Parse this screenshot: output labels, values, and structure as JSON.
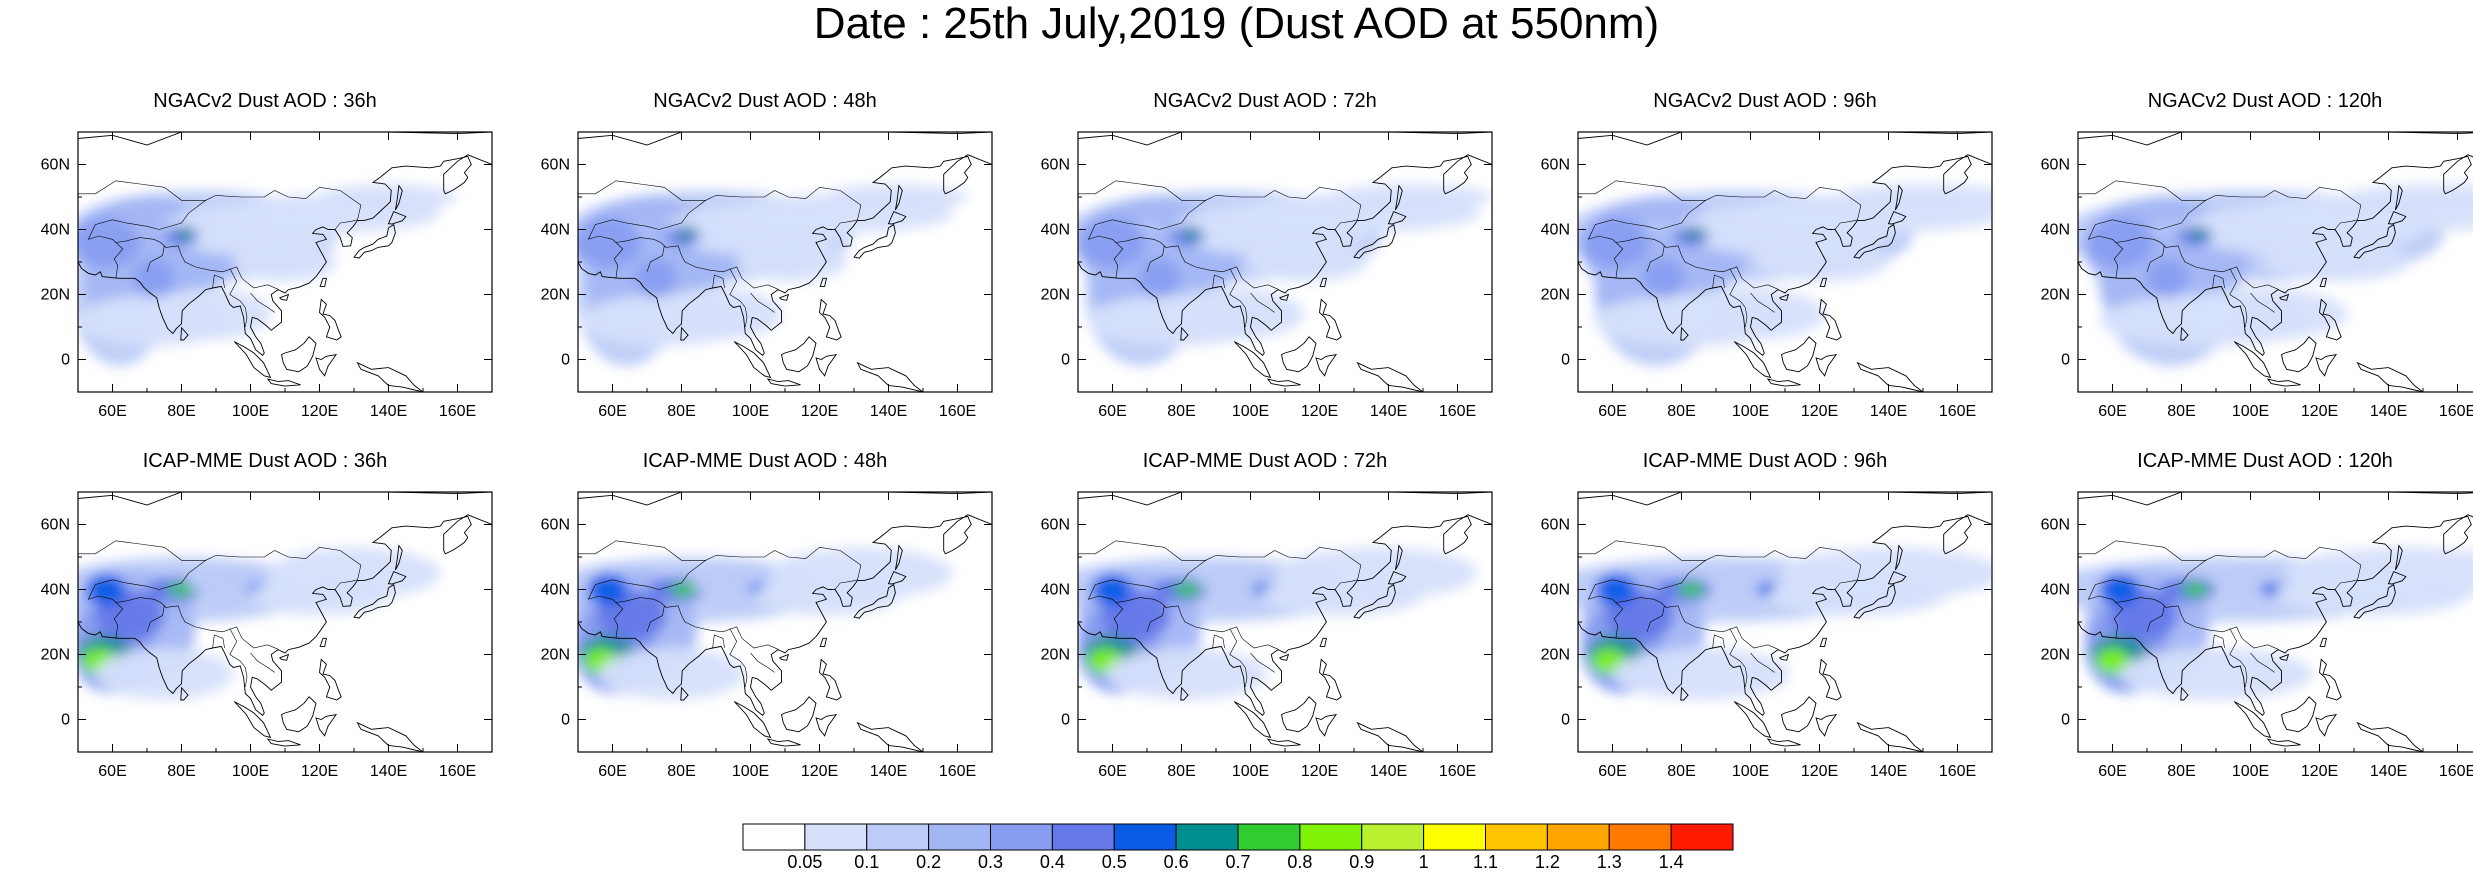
{
  "title": "Date : 25th July,2019 (Dust AOD at 550nm)",
  "panels": [
    {
      "title": "NGACv2 Dust AOD : 36h",
      "model": "ngac",
      "lead": 36
    },
    {
      "title": "NGACv2 Dust AOD : 48h",
      "model": "ngac",
      "lead": 48
    },
    {
      "title": "NGACv2 Dust AOD : 72h",
      "model": "ngac",
      "lead": 72
    },
    {
      "title": "NGACv2 Dust AOD : 96h",
      "model": "ngac",
      "lead": 96
    },
    {
      "title": "NGACv2 Dust AOD : 120h",
      "model": "ngac",
      "lead": 120
    },
    {
      "title": "ICAP-MME Dust AOD : 36h",
      "model": "icap",
      "lead": 36
    },
    {
      "title": "ICAP-MME Dust AOD : 48h",
      "model": "icap",
      "lead": 48
    },
    {
      "title": "ICAP-MME Dust AOD : 72h",
      "model": "icap",
      "lead": 72
    },
    {
      "title": "ICAP-MME Dust AOD : 96h",
      "model": "icap",
      "lead": 96
    },
    {
      "title": "ICAP-MME Dust AOD : 120h",
      "model": "icap",
      "lead": 120
    }
  ],
  "map": {
    "lon_range": [
      50,
      170
    ],
    "lat_range": [
      -10,
      70
    ],
    "lon_ticks": [
      "60E",
      "80E",
      "100E",
      "120E",
      "140E",
      "160E"
    ],
    "lat_ticks": [
      "60N",
      "40N",
      "20N",
      "0"
    ]
  },
  "colorbar": {
    "labels": [
      "0.05",
      "0.1",
      "0.2",
      "0.3",
      "0.4",
      "0.5",
      "0.6",
      "0.7",
      "0.8",
      "0.9",
      "1",
      "1.1",
      "1.2",
      "1.3",
      "1.4"
    ],
    "colors": [
      "#ffffff",
      "#d6e0fb",
      "#bccbf8",
      "#a3b6f4",
      "#889df0",
      "#6478e8",
      "#0a5be6",
      "#008f8f",
      "#2fcd2f",
      "#7ef207",
      "#b9f030",
      "#ffff00",
      "#ffc400",
      "#ffa500",
      "#ff7800",
      "#ff1a00"
    ]
  }
}
